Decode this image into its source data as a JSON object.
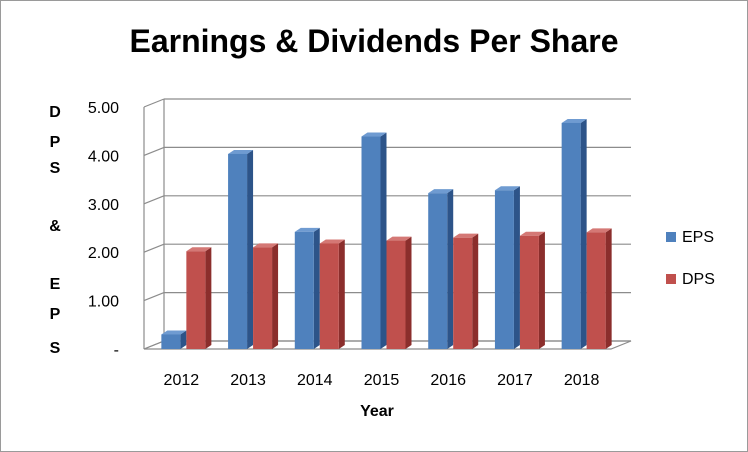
{
  "chart_data": {
    "type": "bar",
    "title": "Earnings & Dividends Per Share",
    "xlabel": "Year",
    "ylabel": "DPS & EPS",
    "categories": [
      "2012",
      "2013",
      "2014",
      "2015",
      "2016",
      "2017",
      "2018"
    ],
    "series": [
      {
        "name": "EPS",
        "values": [
          0.3,
          4.03,
          2.42,
          4.39,
          3.22,
          3.28,
          4.67
        ]
      },
      {
        "name": "DPS",
        "values": [
          2.02,
          2.1,
          2.18,
          2.24,
          2.3,
          2.34,
          2.41
        ]
      }
    ],
    "ylim": [
      0,
      5
    ],
    "yticks": [
      "-",
      "1.00",
      "2.00",
      "3.00",
      "4.00",
      "5.00"
    ],
    "ytick_values": [
      0,
      1,
      2,
      3,
      4,
      5
    ],
    "grid": true,
    "legend_position": "right",
    "three_d": true,
    "colors": {
      "EPS": {
        "front": "#4f81bd",
        "side": "#2d5489",
        "top": "#6f9bd1"
      },
      "DPS": {
        "front": "#c0504d",
        "side": "#8b2e2c",
        "top": "#d47875"
      },
      "grid": "#8c8c8c"
    }
  }
}
